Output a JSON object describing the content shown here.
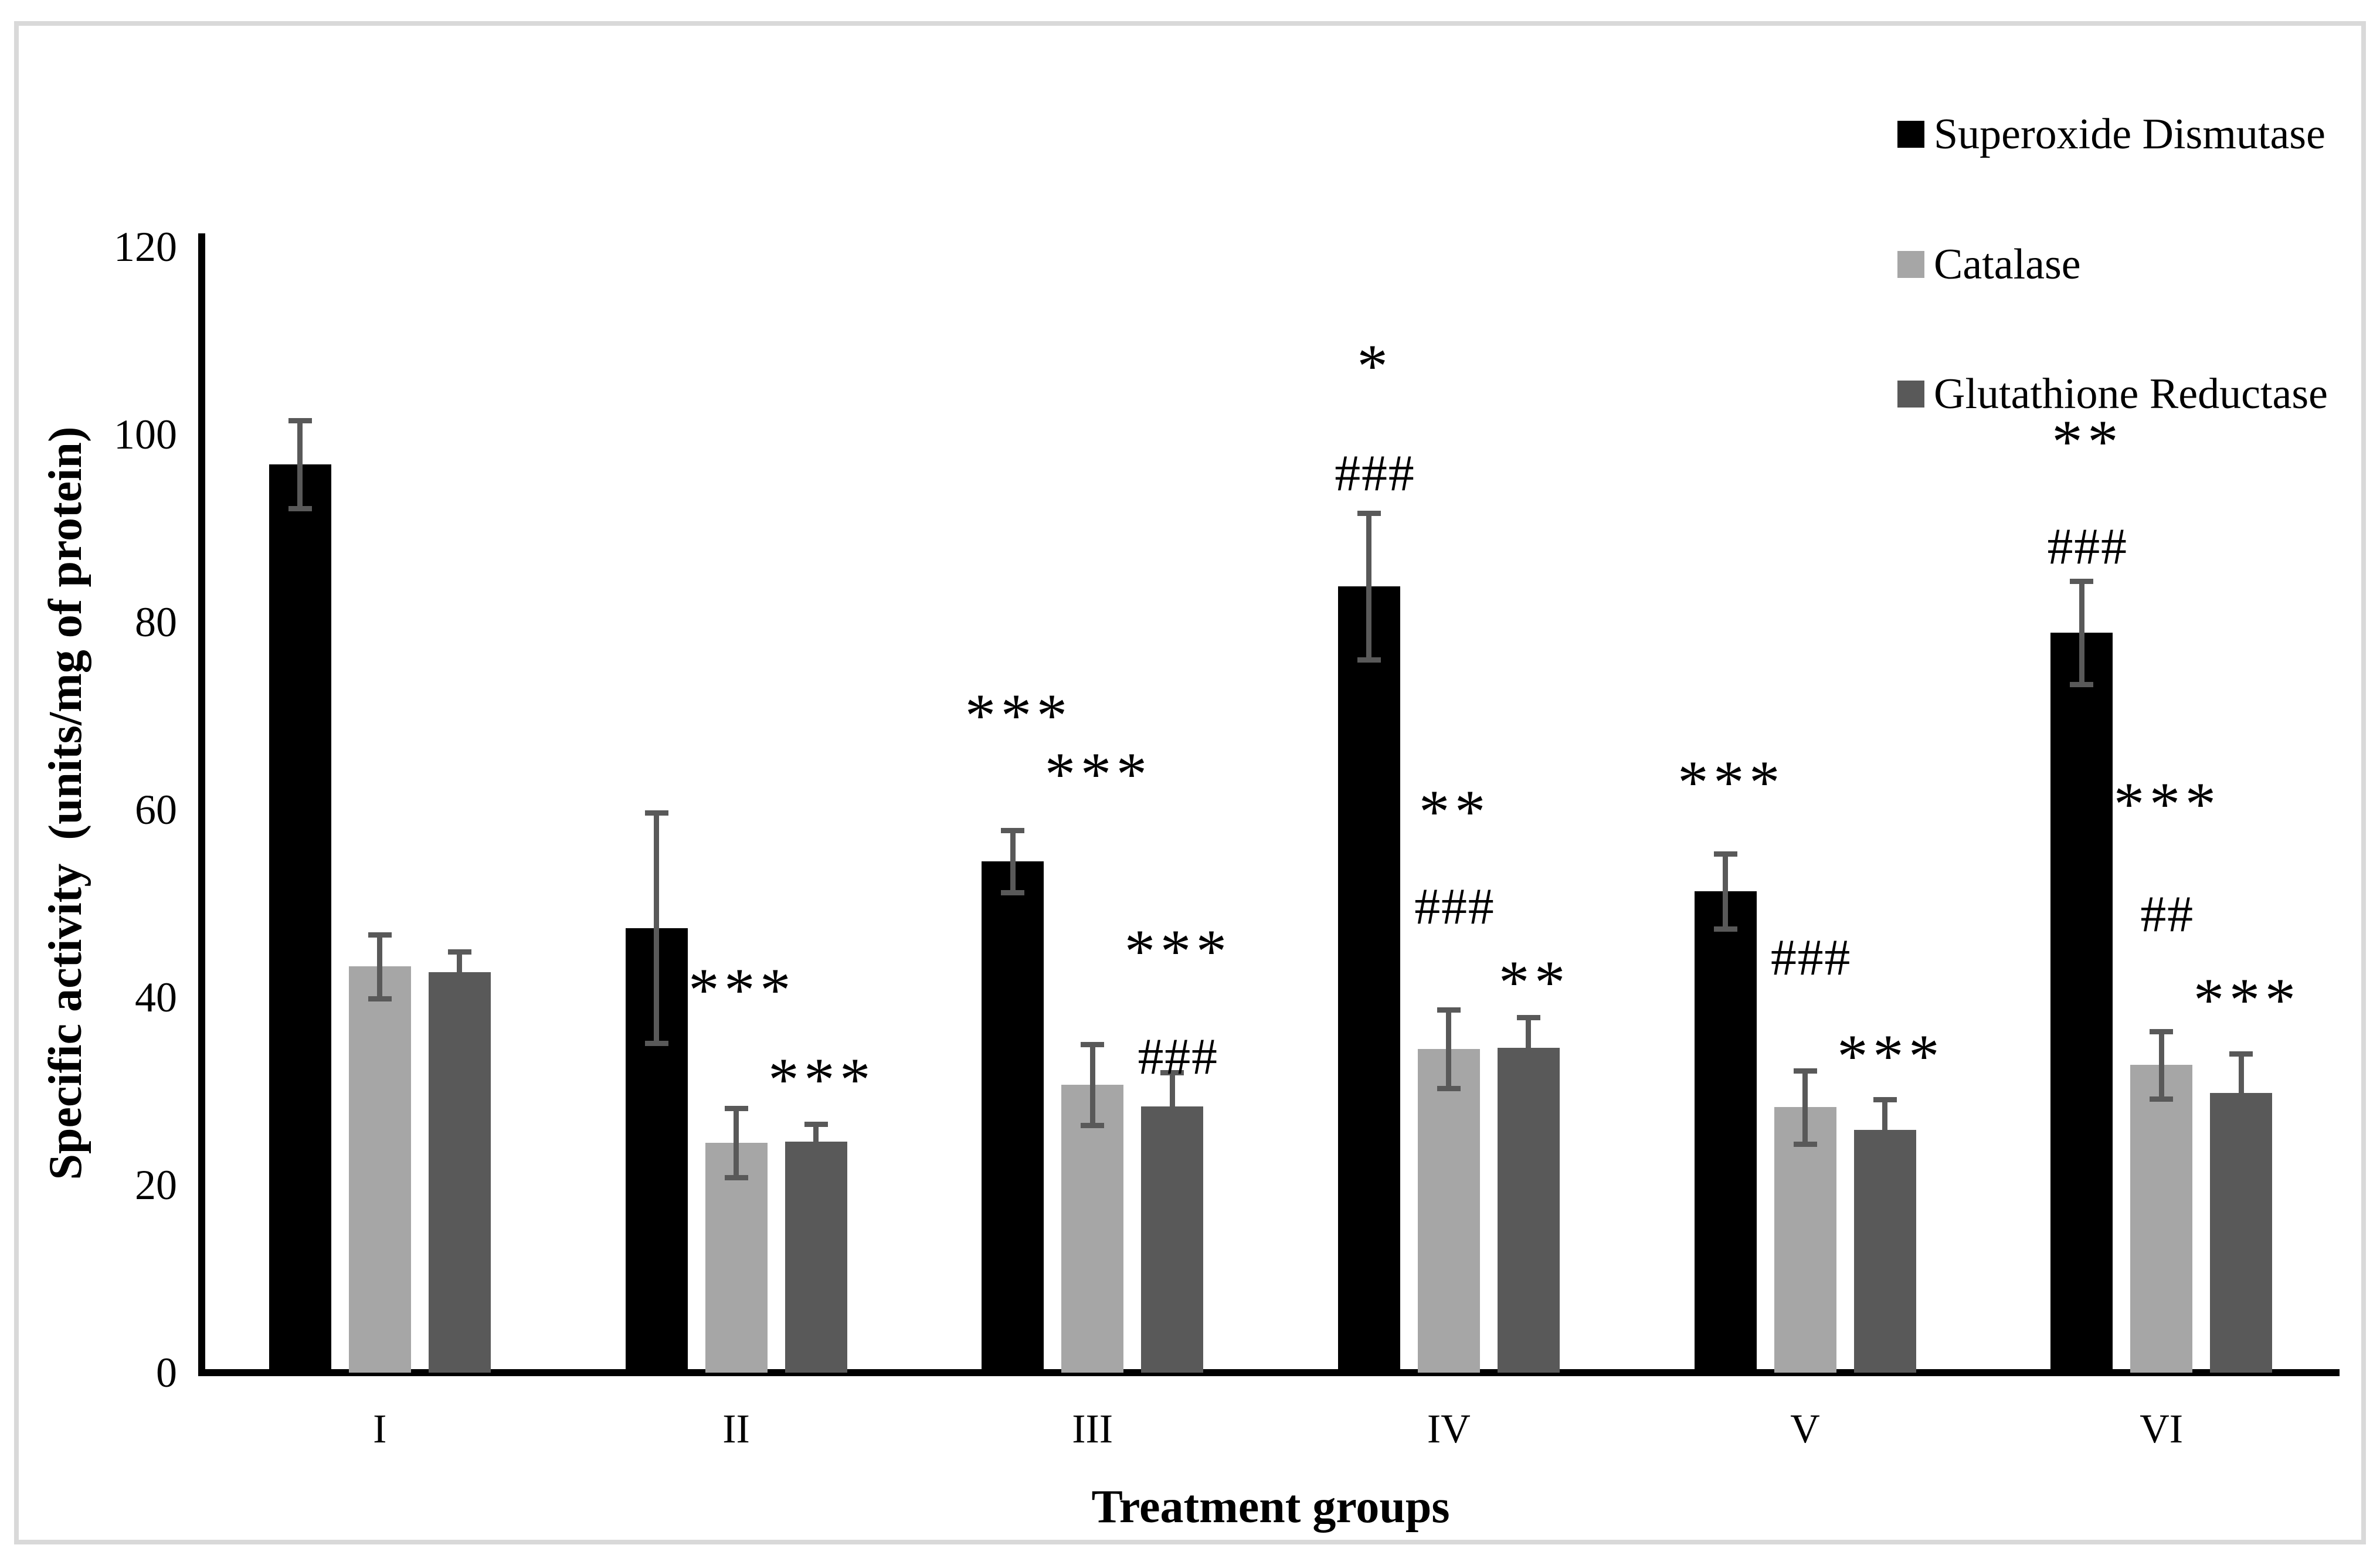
{
  "figure": {
    "background": "#ffffff",
    "border_color": "#d9d9d9"
  },
  "axis": {
    "line_color": "#000000",
    "error_bar_color": "#595959"
  },
  "legend": {
    "position": "top-right",
    "items": [
      {
        "label": "Superoxide Dismutase",
        "color": "#000000"
      },
      {
        "label": "Catalase",
        "color": "#a6a6a6"
      },
      {
        "label": "Glutathione Reductase",
        "color": "#595959"
      }
    ]
  },
  "chart_data": {
    "type": "bar",
    "title": "",
    "categories": [
      "I",
      "II",
      "III",
      "IV",
      "V",
      "VI"
    ],
    "series": [
      {
        "name": "Superoxide Dismutase",
        "color": "#000000",
        "values": [
          96.8,
          47.4,
          54.5,
          83.8,
          51.3,
          78.9
        ],
        "errors": [
          4.7,
          12.3,
          3.3,
          7.8,
          4.0,
          5.5
        ]
      },
      {
        "name": "Catalase",
        "color": "#a6a6a6",
        "values": [
          43.3,
          24.5,
          30.7,
          34.5,
          28.3,
          32.8
        ],
        "errors": [
          3.4,
          3.7,
          4.3,
          4.2,
          3.9,
          3.6
        ]
      },
      {
        "name": "Glutathione Reductase",
        "color": "#595959",
        "values": [
          42.7,
          24.6,
          28.4,
          34.6,
          25.9,
          29.8
        ],
        "errors": [
          2.2,
          1.9,
          3.6,
          3.3,
          3.2,
          4.2
        ]
      }
    ],
    "ylabel": "Specific activity  (units/mg of protein)",
    "xlabel": "Treatment groups",
    "ylim": [
      0,
      120
    ],
    "yticks": [
      0,
      20,
      40,
      60,
      80,
      100,
      120
    ],
    "grid": false,
    "legend_position": "top-right",
    "error_bars": true,
    "annotations": [
      {
        "group": "II",
        "series": "Catalase",
        "text": "***",
        "y": 42.4
      },
      {
        "group": "II",
        "series": "Glutathione Reductase",
        "text": "***",
        "y": 32.8
      },
      {
        "group": "III",
        "series": "Superoxide Dismutase",
        "text": "***",
        "y": 71.6
      },
      {
        "group": "III",
        "series": "Catalase",
        "text": "***",
        "y": 65.4
      },
      {
        "group": "III",
        "series": "Glutathione Reductase",
        "text": "***",
        "y": 46.5
      },
      {
        "group": "III",
        "series": "Glutathione Reductase",
        "text": "###",
        "y": 33.8
      },
      {
        "group": "IV",
        "series": "Superoxide Dismutase",
        "text": "*",
        "y": 108.9
      },
      {
        "group": "IV",
        "series": "Superoxide Dismutase",
        "text": "###",
        "y": 96.0
      },
      {
        "group": "IV",
        "series": "Catalase",
        "text": "**",
        "y": 61.4
      },
      {
        "group": "IV",
        "series": "Catalase",
        "text": "###",
        "y": 49.8
      },
      {
        "group": "IV",
        "series": "Glutathione Reductase",
        "text": "**",
        "y": 43.2
      },
      {
        "group": "V",
        "series": "Superoxide Dismutase",
        "text": "***",
        "y": 64.5
      },
      {
        "group": "V",
        "series": "Catalase",
        "text": "###",
        "y": 44.4
      },
      {
        "group": "V",
        "series": "Glutathione Reductase",
        "text": "***",
        "y": 35.3
      },
      {
        "group": "VI",
        "series": "Superoxide Dismutase",
        "text": "**",
        "y": 100.8
      },
      {
        "group": "VI",
        "series": "Superoxide Dismutase",
        "text": "###",
        "y": 88.2
      },
      {
        "group": "VI",
        "series": "Catalase",
        "text": "***",
        "y": 62.2
      },
      {
        "group": "VI",
        "series": "Catalase",
        "text": "##",
        "y": 49.0
      },
      {
        "group": "VI",
        "series": "Glutathione Reductase",
        "text": "***",
        "y": 41.3
      }
    ]
  }
}
